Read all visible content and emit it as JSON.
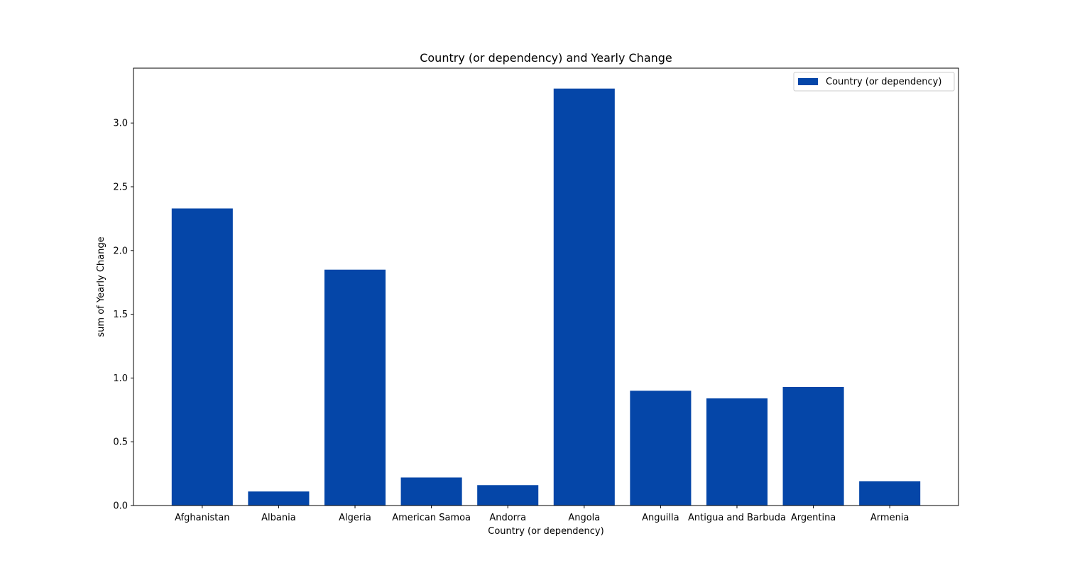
{
  "chart_data": {
    "type": "bar",
    "title": "Country (or dependency) and Yearly Change",
    "xlabel": "Country (or dependency)",
    "ylabel": "sum of Yearly Change",
    "categories": [
      "Afghanistan",
      "Albania",
      "Algeria",
      "American Samoa",
      "Andorra",
      "Angola",
      "Anguilla",
      "Antigua and Barbuda",
      "Argentina",
      "Armenia"
    ],
    "series": [
      {
        "name": "Country (or dependency)",
        "values": [
          2.33,
          0.11,
          1.85,
          0.22,
          0.16,
          3.27,
          0.9,
          0.84,
          0.93,
          0.19
        ],
        "color": "#0546a8"
      }
    ],
    "ylim": [
      0,
      3.43
    ],
    "yticks": [
      "0.0",
      "0.5",
      "1.0",
      "1.5",
      "2.0",
      "2.5",
      "3.0"
    ],
    "grid": false,
    "legend_position": "top-right"
  }
}
